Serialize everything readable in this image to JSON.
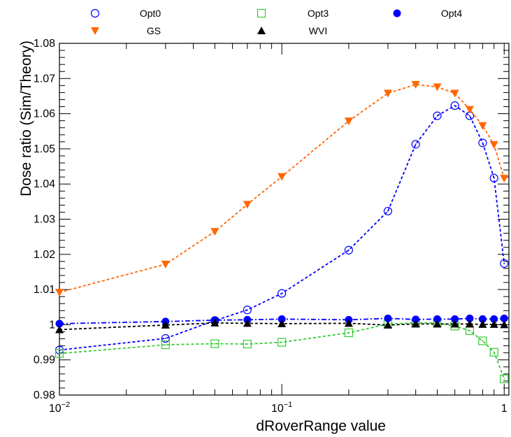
{
  "chart_data": {
    "type": "scatter",
    "title": "",
    "xlabel": "dRoverRange value",
    "ylabel": "Dose ratio (Sim/Theory)",
    "xscale": "log",
    "xlim": [
      0.01,
      1.05
    ],
    "ylim": [
      0.98,
      1.08
    ],
    "x_ticks": [
      {
        "value": 0.01,
        "base": "10",
        "exp": "−2"
      },
      {
        "value": 0.1,
        "base": "10",
        "exp": "−1"
      },
      {
        "value": 1,
        "base": "1",
        "exp": ""
      }
    ],
    "y_ticks": [
      {
        "value": 0.98,
        "label": "0.98"
      },
      {
        "value": 0.99,
        "label": "0.99"
      },
      {
        "value": 1.0,
        "label": "1"
      },
      {
        "value": 1.01,
        "label": "1.01"
      },
      {
        "value": 1.02,
        "label": "1.02"
      },
      {
        "value": 1.03,
        "label": "1.03"
      },
      {
        "value": 1.04,
        "label": "1.04"
      },
      {
        "value": 1.05,
        "label": "1.05"
      },
      {
        "value": 1.06,
        "label": "1.06"
      },
      {
        "value": 1.07,
        "label": "1.07"
      },
      {
        "value": 1.08,
        "label": "1.08"
      }
    ],
    "legend_position": "top",
    "x": [
      0.01,
      0.03,
      0.05,
      0.07,
      0.1,
      0.2,
      0.3,
      0.4,
      0.5,
      0.6,
      0.7,
      0.8,
      0.9,
      1.0
    ],
    "series": [
      {
        "name": "Opt0",
        "marker": "open-circle",
        "color": "#0000ff",
        "line": "dash",
        "values": [
          0.9928,
          0.9961,
          1.0012,
          1.0042,
          1.0089,
          1.0212,
          1.0323,
          1.0513,
          1.0594,
          1.0623,
          1.0594,
          1.0517,
          1.0417,
          1.0174
        ]
      },
      {
        "name": "Opt3",
        "marker": "open-square",
        "color": "#33cc33",
        "line": "dash",
        "values": [
          0.9918,
          0.9943,
          0.9946,
          0.9945,
          0.995,
          0.9977,
          1.0002,
          1.0005,
          1.0005,
          0.9996,
          0.9983,
          0.9954,
          0.9922,
          0.9846
        ]
      },
      {
        "name": "Opt4",
        "marker": "filled-circle",
        "color": "#0000ff",
        "line": "dashdot",
        "values": [
          1.0003,
          1.0009,
          1.0013,
          1.0014,
          1.0016,
          1.0014,
          1.0018,
          1.0015,
          1.0016,
          1.0016,
          1.0018,
          1.0016,
          1.0016,
          1.0018
        ]
      },
      {
        "name": "GS",
        "marker": "filled-triangle-down",
        "color": "#ff6600",
        "line": "dash",
        "values": [
          1.0092,
          1.0172,
          1.0265,
          1.0342,
          1.0421,
          1.0579,
          1.0658,
          1.0683,
          1.0676,
          1.0658,
          1.0612,
          1.0566,
          1.0512,
          1.0416
        ]
      },
      {
        "name": "WVI",
        "marker": "filled-triangle-up",
        "color": "#000000",
        "line": "dash",
        "values": [
          0.9986,
          0.9999,
          1.0005,
          1.0004,
          1.0003,
          1.0004,
          0.9999,
          1.0002,
          1.0002,
          1.0002,
          1.0002,
          1.0001,
          1.0001,
          1.0
        ]
      }
    ]
  }
}
